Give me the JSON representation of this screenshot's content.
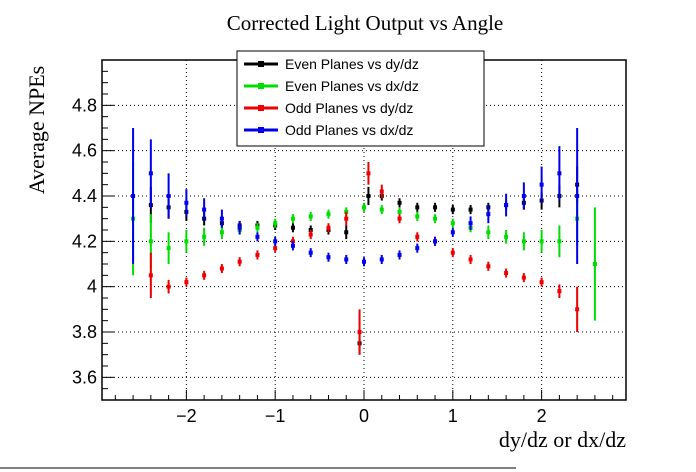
{
  "chart_data": {
    "type": "scatter",
    "title": "Corrected Light Output vs Angle",
    "xlabel": "dy/dz or dx/dz",
    "ylabel": "Average NPEs",
    "xlim": [
      -2.95,
      2.95
    ],
    "ylim": [
      3.5,
      5.0
    ],
    "x_ticks": [
      -2,
      -1,
      0,
      1,
      2
    ],
    "x_tick_labels": [
      "−2",
      "−1",
      "0",
      "1",
      "2"
    ],
    "y_ticks": [
      3.6,
      3.8,
      4.0,
      4.2,
      4.4,
      4.6,
      4.8
    ],
    "y_tick_labels": [
      "3.6",
      "3.8",
      "4",
      "4.2",
      "4.4",
      "4.6",
      "4.8"
    ],
    "grid": true,
    "legend_position": "top-center",
    "error_bars": true,
    "series": [
      {
        "name": "Even Planes vs dy/dz",
        "color": "#000000",
        "x": [
          -2.4,
          -2.2,
          -2.0,
          -1.8,
          -1.6,
          -1.4,
          -1.2,
          -1.0,
          -0.8,
          -0.6,
          -0.4,
          -0.2,
          -0.05,
          0.05,
          0.2,
          0.4,
          0.6,
          0.8,
          1.0,
          1.2,
          1.4,
          1.6,
          1.8,
          2.0,
          2.2,
          2.4
        ],
        "y": [
          4.36,
          4.35,
          4.33,
          4.3,
          4.28,
          4.27,
          4.27,
          4.27,
          4.26,
          4.25,
          4.25,
          4.24,
          3.75,
          4.4,
          4.4,
          4.37,
          4.35,
          4.35,
          4.34,
          4.34,
          4.35,
          4.36,
          4.37,
          4.38,
          4.4,
          4.45
        ],
        "err": [
          0.08,
          0.05,
          0.04,
          0.03,
          0.02,
          0.02,
          0.02,
          0.02,
          0.02,
          0.02,
          0.02,
          0.03,
          0.05,
          0.04,
          0.02,
          0.02,
          0.02,
          0.02,
          0.02,
          0.02,
          0.02,
          0.02,
          0.03,
          0.04,
          0.05,
          0.08
        ]
      },
      {
        "name": "Even Planes vs dx/dz",
        "color": "#00dd00",
        "x": [
          -2.6,
          -2.4,
          -2.2,
          -2.0,
          -1.8,
          -1.6,
          -1.4,
          -1.2,
          -1.0,
          -0.8,
          -0.6,
          -0.4,
          -0.2,
          0.0,
          0.2,
          0.4,
          0.6,
          0.8,
          1.0,
          1.2,
          1.4,
          1.6,
          1.8,
          2.0,
          2.2,
          2.4,
          2.6
        ],
        "y": [
          4.3,
          4.2,
          4.17,
          4.2,
          4.22,
          4.24,
          4.25,
          4.26,
          4.28,
          4.3,
          4.31,
          4.32,
          4.33,
          4.35,
          4.34,
          4.33,
          4.31,
          4.3,
          4.28,
          4.26,
          4.24,
          4.22,
          4.2,
          4.2,
          4.2,
          4.3,
          4.1
        ],
        "err": [
          0.25,
          0.12,
          0.07,
          0.05,
          0.04,
          0.03,
          0.02,
          0.02,
          0.02,
          0.02,
          0.02,
          0.02,
          0.02,
          0.02,
          0.02,
          0.02,
          0.02,
          0.02,
          0.02,
          0.02,
          0.03,
          0.03,
          0.04,
          0.05,
          0.07,
          0.12,
          0.25
        ]
      },
      {
        "name": "Odd Planes vs dy/dz",
        "color": "#ee0000",
        "x": [
          -2.4,
          -2.2,
          -2.0,
          -1.8,
          -1.6,
          -1.4,
          -1.2,
          -1.0,
          -0.8,
          -0.6,
          -0.4,
          -0.2,
          -0.05,
          0.05,
          0.2,
          0.4,
          0.6,
          0.8,
          1.0,
          1.2,
          1.4,
          1.6,
          1.8,
          2.0,
          2.2,
          2.4
        ],
        "y": [
          4.05,
          4.0,
          4.02,
          4.05,
          4.08,
          4.11,
          4.14,
          4.17,
          4.2,
          4.23,
          4.26,
          4.3,
          3.8,
          4.5,
          4.42,
          4.3,
          4.22,
          4.2,
          4.15,
          4.12,
          4.09,
          4.06,
          4.04,
          4.02,
          3.98,
          3.9
        ],
        "err": [
          0.1,
          0.03,
          0.02,
          0.02,
          0.02,
          0.02,
          0.02,
          0.02,
          0.02,
          0.02,
          0.02,
          0.03,
          0.1,
          0.05,
          0.03,
          0.02,
          0.02,
          0.02,
          0.02,
          0.02,
          0.02,
          0.02,
          0.02,
          0.02,
          0.03,
          0.1
        ]
      },
      {
        "name": "Odd Planes vs dx/dz",
        "color": "#0000ee",
        "x": [
          -2.6,
          -2.4,
          -2.2,
          -2.0,
          -1.8,
          -1.6,
          -1.4,
          -1.2,
          -1.0,
          -0.8,
          -0.6,
          -0.4,
          -0.2,
          0.0,
          0.2,
          0.4,
          0.6,
          0.8,
          1.0,
          1.2,
          1.4,
          1.6,
          1.8,
          2.0,
          2.2,
          2.4
        ],
        "y": [
          4.4,
          4.5,
          4.4,
          4.37,
          4.34,
          4.3,
          4.26,
          4.22,
          4.2,
          4.18,
          4.15,
          4.13,
          4.12,
          4.11,
          4.12,
          4.14,
          4.17,
          4.2,
          4.24,
          4.28,
          4.32,
          4.36,
          4.4,
          4.45,
          4.5,
          4.4
        ],
        "err": [
          0.3,
          0.15,
          0.1,
          0.06,
          0.05,
          0.04,
          0.03,
          0.02,
          0.02,
          0.02,
          0.02,
          0.02,
          0.02,
          0.02,
          0.02,
          0.02,
          0.02,
          0.02,
          0.02,
          0.03,
          0.04,
          0.05,
          0.06,
          0.08,
          0.12,
          0.3
        ]
      }
    ]
  }
}
